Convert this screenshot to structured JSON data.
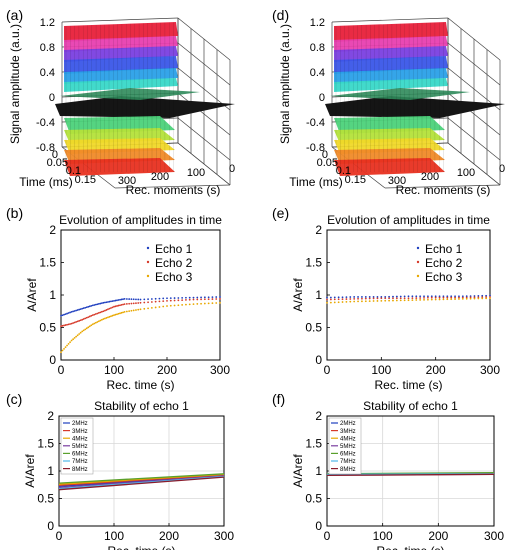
{
  "chart_data": [
    {
      "panel": "(a)",
      "type": "surface",
      "zlabel": "Signal amplitude (a.u.)",
      "xlabel": "Time (ms)",
      "ylabel": "Rec. moments (s)",
      "zticks": [
        "1.2",
        "0.8",
        "0.4",
        "0",
        "-0.4",
        "-0.8"
      ],
      "xticks": [
        "0",
        "0.05",
        "0.1",
        "0.15"
      ],
      "yticks": [
        "300",
        "200",
        "100",
        "0"
      ],
      "zlim": [
        -0.8,
        1.2
      ]
    },
    {
      "panel": "(b)",
      "type": "scatter",
      "title": "Evolution of amplitudes in time",
      "xlabel": "Rec. time (s)",
      "ylabel": "A/Aref",
      "xlim": [
        0,
        300
      ],
      "ylim": [
        0,
        2
      ],
      "xticks": [
        "0",
        "100",
        "200",
        "300"
      ],
      "yticks": [
        "0",
        "0.5",
        "1",
        "1.5",
        "2"
      ],
      "legend_position": "top-right",
      "series": [
        {
          "name": "Echo 1",
          "color": "#1f3fbf",
          "x": [
            0,
            20,
            40,
            60,
            80,
            100,
            120,
            150,
            200,
            250,
            300
          ],
          "y": [
            0.68,
            0.74,
            0.79,
            0.84,
            0.88,
            0.91,
            0.94,
            0.93,
            0.95,
            0.96,
            0.97
          ]
        },
        {
          "name": "Echo 2",
          "color": "#d63a2a",
          "x": [
            0,
            20,
            40,
            60,
            80,
            100,
            120,
            150,
            200,
            250,
            300
          ],
          "y": [
            0.52,
            0.56,
            0.62,
            0.69,
            0.75,
            0.82,
            0.86,
            0.88,
            0.91,
            0.93,
            0.94
          ]
        },
        {
          "name": "Echo 3",
          "color": "#e8a800",
          "x": [
            0,
            20,
            40,
            60,
            80,
            100,
            120,
            150,
            200,
            250,
            300
          ],
          "y": [
            0.12,
            0.3,
            0.44,
            0.55,
            0.63,
            0.69,
            0.74,
            0.78,
            0.83,
            0.86,
            0.88
          ]
        }
      ]
    },
    {
      "panel": "(c)",
      "type": "line",
      "title": "Stability of echo 1",
      "xlabel": "Rec. time (s)",
      "ylabel": "A/Aref",
      "xlim": [
        0,
        300
      ],
      "ylim": [
        0,
        2
      ],
      "xticks": [
        "0",
        "100",
        "200",
        "300"
      ],
      "yticks": [
        "0",
        "0.5",
        "1",
        "1.5",
        "2"
      ],
      "grid": true,
      "legend_position": "top-left",
      "x": [
        0,
        300
      ],
      "series": [
        {
          "name": "2MHz",
          "color": "#1f3fbf",
          "y": [
            0.72,
            0.92
          ]
        },
        {
          "name": "3MHz",
          "color": "#d63a2a",
          "y": [
            0.74,
            0.93
          ]
        },
        {
          "name": "4MHz",
          "color": "#e8a800",
          "y": [
            0.76,
            0.94
          ]
        },
        {
          "name": "5MHz",
          "color": "#7b3fa0",
          "y": [
            0.7,
            0.91
          ]
        },
        {
          "name": "6MHz",
          "color": "#5aa02c",
          "y": [
            0.78,
            0.95
          ]
        },
        {
          "name": "7MHz",
          "color": "#4fb8e8",
          "y": [
            0.68,
            0.9
          ]
        },
        {
          "name": "8MHz",
          "color": "#8a1c2c",
          "y": [
            0.66,
            0.89
          ]
        }
      ]
    },
    {
      "panel": "(d)",
      "type": "surface",
      "zlabel": "Signal amplitude (a.u.)",
      "xlabel": "Time (ms)",
      "ylabel": "Rec. moments (s)",
      "zticks": [
        "1.2",
        "0.8",
        "0.4",
        "0",
        "-0.4",
        "-0.8"
      ],
      "xticks": [
        "0",
        "0.05",
        "0.1",
        "0.15"
      ],
      "yticks": [
        "300",
        "200",
        "100",
        "0"
      ],
      "zlim": [
        -0.8,
        1.2
      ]
    },
    {
      "panel": "(e)",
      "type": "scatter",
      "title": "Evolution of amplitudes in time",
      "xlabel": "Rec. time (s)",
      "ylabel": "A/Aref",
      "xlim": [
        0,
        300
      ],
      "ylim": [
        0,
        2
      ],
      "xticks": [
        "0",
        "100",
        "200",
        "300"
      ],
      "yticks": [
        "0",
        "0.5",
        "1",
        "1.5",
        "2"
      ],
      "legend_position": "top-right",
      "series": [
        {
          "name": "Echo 1",
          "color": "#1f3fbf",
          "x": [
            0,
            50,
            100,
            150,
            200,
            250,
            300
          ],
          "y": [
            0.96,
            0.97,
            0.97,
            0.98,
            0.98,
            0.98,
            0.99
          ]
        },
        {
          "name": "Echo 2",
          "color": "#d63a2a",
          "x": [
            0,
            50,
            100,
            150,
            200,
            250,
            300
          ],
          "y": [
            0.93,
            0.94,
            0.95,
            0.95,
            0.96,
            0.96,
            0.97
          ]
        },
        {
          "name": "Echo 3",
          "color": "#e8a800",
          "x": [
            0,
            50,
            100,
            150,
            200,
            250,
            300
          ],
          "y": [
            0.88,
            0.9,
            0.91,
            0.92,
            0.93,
            0.94,
            0.95
          ]
        }
      ]
    },
    {
      "panel": "(f)",
      "type": "line",
      "title": "Stability of echo 1",
      "xlabel": "Rec. time (s)",
      "ylabel": "A/Aref",
      "xlim": [
        0,
        300
      ],
      "ylim": [
        0,
        2
      ],
      "xticks": [
        "0",
        "100",
        "200",
        "300"
      ],
      "yticks": [
        "0",
        "0.5",
        "1",
        "1.5",
        "2"
      ],
      "grid": true,
      "legend_position": "top-left",
      "x": [
        0,
        300
      ],
      "series": [
        {
          "name": "2MHz",
          "color": "#1f3fbf",
          "y": [
            0.93,
            0.95
          ]
        },
        {
          "name": "3MHz",
          "color": "#d63a2a",
          "y": [
            0.94,
            0.96
          ]
        },
        {
          "name": "4MHz",
          "color": "#e8a800",
          "y": [
            0.95,
            0.96
          ]
        },
        {
          "name": "5MHz",
          "color": "#7b3fa0",
          "y": [
            0.93,
            0.94
          ]
        },
        {
          "name": "6MHz",
          "color": "#5aa02c",
          "y": [
            0.95,
            0.97
          ]
        },
        {
          "name": "7MHz",
          "color": "#4fb8e8",
          "y": [
            0.94,
            0.95
          ]
        },
        {
          "name": "8MHz",
          "color": "#8a1c2c",
          "y": [
            0.92,
            0.94
          ]
        }
      ]
    }
  ]
}
